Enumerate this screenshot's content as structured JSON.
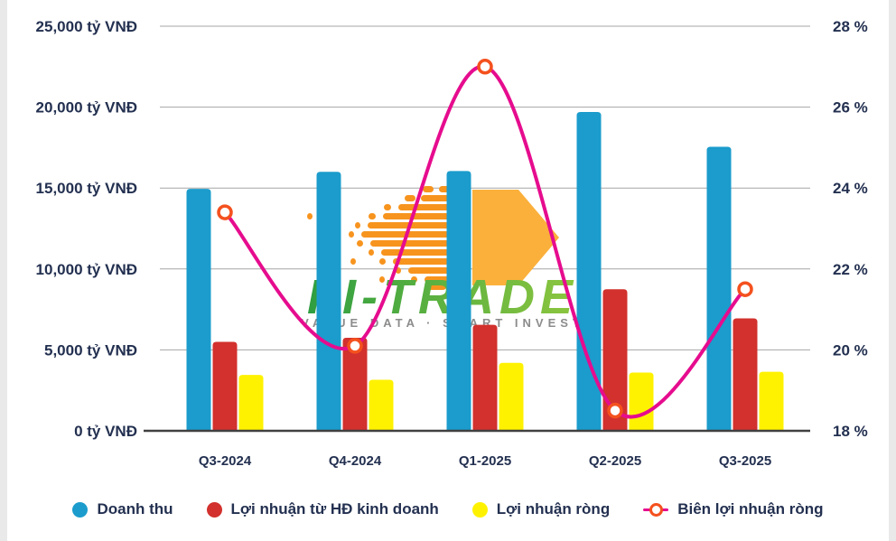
{
  "watermark": {
    "brand": "FI-TRADE",
    "tagline": "VALUE DATA  ·  SMART INVEST"
  },
  "colors": {
    "text": "#233050",
    "grid": "#a6a6a6",
    "axis_line": "#404040",
    "edge_strip": "#e9e9e9",
    "watermark_orange": "#f7941e",
    "watermark_arrow": "#fbb03b",
    "watermark_green_dark": "#2f9e41",
    "watermark_green_light": "#8dc63f",
    "watermark_tagline": "#8c8c8c"
  },
  "chart_data": {
    "type": "combo",
    "categories": [
      "Q3-2024",
      "Q4-2024",
      "Q1-2025",
      "Q2-2025",
      "Q3-2025"
    ],
    "series": [
      {
        "name": "Doanh thu",
        "type": "bar",
        "color": "#1b9ccc",
        "values": [
          14950,
          16000,
          16050,
          19700,
          17550
        ]
      },
      {
        "name": "Lợi nhuận từ HĐ kinh doanh",
        "type": "bar",
        "color": "#d2312d",
        "values": [
          5500,
          5750,
          6550,
          8750,
          6950
        ]
      },
      {
        "name": "Lợi nhuận ròng",
        "type": "bar",
        "color": "#fff200",
        "values": [
          3450,
          3150,
          4200,
          3600,
          3650
        ]
      },
      {
        "name": "Biên lợi nhuận ròng",
        "type": "line",
        "axis": "right",
        "color": "#e60c8e",
        "marker_color": "#f4511e",
        "values": [
          23.4,
          20.1,
          27.0,
          18.5,
          21.5
        ]
      }
    ],
    "left_axis": {
      "unit": "tỷ VNĐ",
      "min": 0,
      "max": 25000,
      "step": 5000,
      "tick_labels": [
        "0 tỷ VNĐ",
        "5,000 tỷ VNĐ",
        "10,000 tỷ VNĐ",
        "15,000 tỷ VNĐ",
        "20,000 tỷ VNĐ",
        "25,000 tỷ VNĐ"
      ]
    },
    "right_axis": {
      "unit": "%",
      "min": 18,
      "max": 28,
      "step": 2,
      "tick_labels": [
        "18 %",
        "20 %",
        "22 %",
        "24 %",
        "26 %",
        "28 %"
      ]
    },
    "grid": true,
    "legend_position": "bottom"
  }
}
